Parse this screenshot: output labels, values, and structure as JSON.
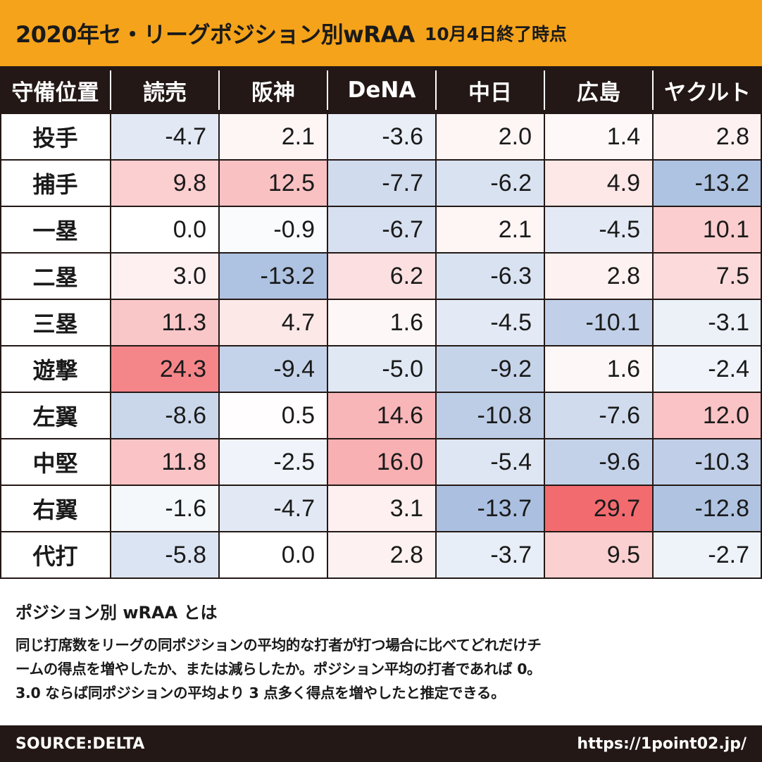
{
  "header": {
    "title": "2020年セ・リーグポジション別wRAA",
    "subtitle": "10月4日終了時点"
  },
  "chart_data": {
    "type": "heatmap",
    "title": "2020年セ・リーグポジション別wRAA",
    "subtitle": "10月4日終了時点",
    "corner_label": "守備位置",
    "columns": [
      "読売",
      "阪神",
      "DeNA",
      "中日",
      "広島",
      "ヤクルト"
    ],
    "rows": [
      {
        "position": "投手",
        "values": [
          -4.7,
          2.1,
          -3.6,
          2.0,
          1.4,
          2.8
        ]
      },
      {
        "position": "捕手",
        "values": [
          9.8,
          12.5,
          -7.7,
          -6.2,
          4.9,
          -13.2
        ]
      },
      {
        "position": "一塁",
        "values": [
          0.0,
          -0.9,
          -6.7,
          2.1,
          -4.5,
          10.1
        ]
      },
      {
        "position": "二塁",
        "values": [
          3.0,
          -13.2,
          6.2,
          -6.3,
          2.8,
          7.5
        ]
      },
      {
        "position": "三塁",
        "values": [
          11.3,
          4.7,
          1.6,
          -4.5,
          -10.1,
          -3.1
        ]
      },
      {
        "position": "遊撃",
        "values": [
          24.3,
          -9.4,
          -5.0,
          -9.2,
          1.6,
          -2.4
        ]
      },
      {
        "position": "左翼",
        "values": [
          -8.6,
          0.5,
          14.6,
          -10.8,
          -7.6,
          12.0
        ]
      },
      {
        "position": "中堅",
        "values": [
          11.8,
          -2.5,
          16.0,
          -5.4,
          -9.6,
          -10.3
        ]
      },
      {
        "position": "右翼",
        "values": [
          -1.6,
          -4.7,
          3.1,
          -13.7,
          29.7,
          -12.8
        ]
      },
      {
        "position": "代打",
        "values": [
          -5.8,
          0.0,
          2.8,
          -3.7,
          9.5,
          -2.7
        ]
      }
    ],
    "color_scale": {
      "negative": "#a9bedf",
      "neutral": "#ffffff",
      "positive": "#f26a6e",
      "min": -14,
      "max": 30
    }
  },
  "description": {
    "title": "ポジション別 wRAA とは",
    "lines": [
      "同じ打席数をリーグの同ポジションの平均的な打者が打つ場合に比べてどれだけチ",
      "ームの得点を増やしたか、または減らしたか。ポジション平均の打者であれば 0。",
      "3.0 ならば同ポジションの平均より 3 点多く得点を増やしたと推定できる。"
    ]
  },
  "footer": {
    "source": "SOURCE:DELTA",
    "url": "https://1point02.jp/"
  }
}
